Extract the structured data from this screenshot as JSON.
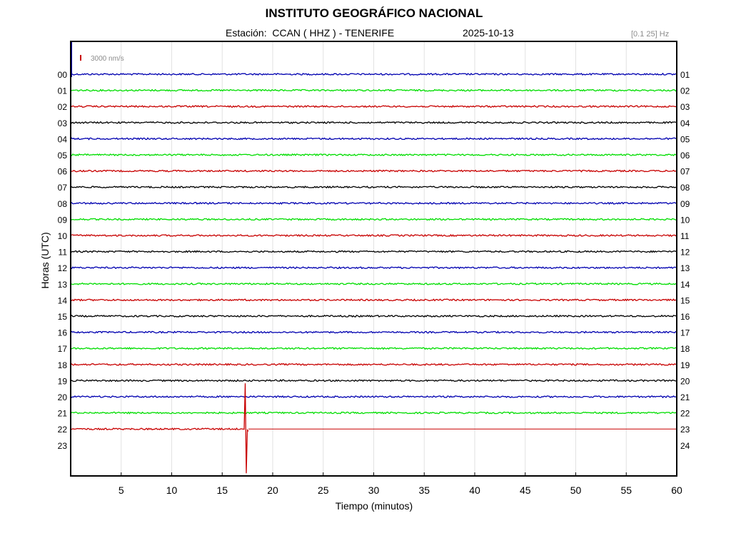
{
  "header": {
    "title": "INSTITUTO GEOGRÁFICO NACIONAL",
    "station_line": "Estación:  CCAN ( HHZ ) - TENERIFE",
    "date": "2025-10-13",
    "filter": "[0.1 25] Hz"
  },
  "chart_data": {
    "type": "line",
    "xlabel": "Tiempo (minutos)",
    "ylabel": "Horas (UTC)",
    "xlim": [
      0,
      60
    ],
    "x_ticks": [
      5,
      10,
      15,
      20,
      25,
      30,
      35,
      40,
      45,
      50,
      55,
      60
    ],
    "left_labels": [
      "00",
      "01",
      "02",
      "03",
      "04",
      "05",
      "06",
      "07",
      "08",
      "09",
      "10",
      "11",
      "12",
      "13",
      "14",
      "15",
      "16",
      "17",
      "18",
      "19",
      "20",
      "21",
      "22",
      "23"
    ],
    "right_labels": [
      "01",
      "02",
      "03",
      "04",
      "05",
      "06",
      "07",
      "08",
      "09",
      "10",
      "11",
      "12",
      "13",
      "14",
      "15",
      "16",
      "17",
      "18",
      "19",
      "20",
      "21",
      "22",
      "23",
      "24"
    ],
    "scale_label": "3000 nm/s",
    "color_cycle": [
      "#0000b0",
      "#00dd00",
      "#c80000",
      "#000000"
    ],
    "grid": true,
    "traces": [
      {
        "hour": "00",
        "end_minute": 60
      },
      {
        "hour": "01",
        "end_minute": 60
      },
      {
        "hour": "02",
        "end_minute": 60
      },
      {
        "hour": "03",
        "end_minute": 60
      },
      {
        "hour": "04",
        "end_minute": 60
      },
      {
        "hour": "05",
        "end_minute": 60
      },
      {
        "hour": "06",
        "end_minute": 60
      },
      {
        "hour": "07",
        "end_minute": 60
      },
      {
        "hour": "08",
        "end_minute": 60
      },
      {
        "hour": "09",
        "end_minute": 60
      },
      {
        "hour": "10",
        "end_minute": 60
      },
      {
        "hour": "11",
        "end_minute": 60
      },
      {
        "hour": "12",
        "end_minute": 60
      },
      {
        "hour": "13",
        "end_minute": 60
      },
      {
        "hour": "14",
        "end_minute": 60
      },
      {
        "hour": "15",
        "end_minute": 60
      },
      {
        "hour": "16",
        "end_minute": 60
      },
      {
        "hour": "17",
        "end_minute": 60
      },
      {
        "hour": "18",
        "end_minute": 60
      },
      {
        "hour": "19",
        "end_minute": 60
      },
      {
        "hour": "20",
        "end_minute": 60
      },
      {
        "hour": "21",
        "end_minute": 60
      },
      {
        "hour": "22",
        "end_minute": 17.6,
        "flat_to_minute": 60,
        "event_minute": 17.3
      }
    ]
  }
}
